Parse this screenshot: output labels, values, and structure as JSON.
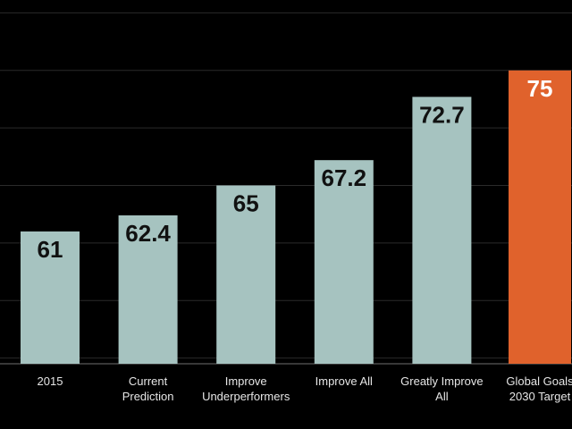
{
  "chart_data": {
    "type": "bar",
    "categories": [
      [
        "2015"
      ],
      [
        "Current",
        "Prediction"
      ],
      [
        "Improve",
        "Underperformers"
      ],
      [
        "Improve All"
      ],
      [
        "Greatly Improve",
        "All"
      ],
      [
        "Global Goals",
        "2030 Target"
      ]
    ],
    "values": [
      61,
      62.4,
      65,
      67.2,
      72.7,
      75
    ],
    "value_labels": [
      "61",
      "62.4",
      "65",
      "67.2",
      "72.7",
      "75"
    ],
    "ylim": [
      49.5,
      80.5
    ],
    "grid": true,
    "title": "",
    "xlabel": "",
    "ylabel": "",
    "colors": {
      "background": "#000000",
      "bar": "#a6c3c0",
      "highlight_bar": "#e0622c",
      "label_on_bar": "#111111",
      "label_on_highlight": "#ffffff"
    },
    "highlight_index": 5
  }
}
